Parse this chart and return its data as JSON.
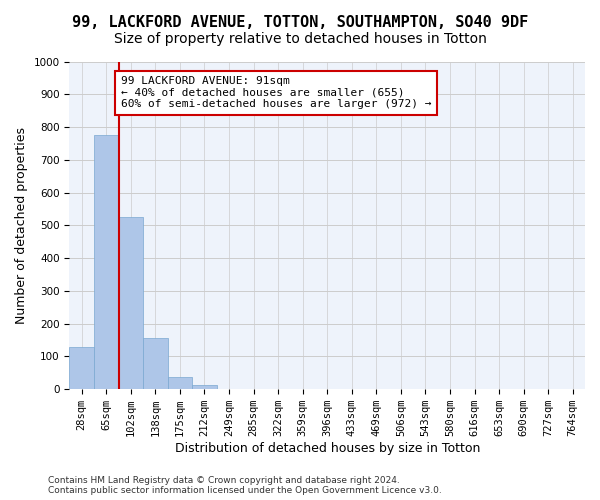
{
  "title": "99, LACKFORD AVENUE, TOTTON, SOUTHAMPTON, SO40 9DF",
  "subtitle": "Size of property relative to detached houses in Totton",
  "xlabel": "Distribution of detached houses by size in Totton",
  "ylabel": "Number of detached properties",
  "bar_values": [
    130,
    775,
    525,
    155,
    37,
    12,
    0,
    0,
    0,
    0,
    0,
    0,
    0,
    0,
    0,
    0,
    0,
    0,
    0,
    0,
    0
  ],
  "bar_labels": [
    "28sqm",
    "65sqm",
    "102sqm",
    "138sqm",
    "175sqm",
    "212sqm",
    "249sqm",
    "285sqm",
    "322sqm",
    "359sqm",
    "396sqm",
    "433sqm",
    "469sqm",
    "506sqm",
    "543sqm",
    "580sqm",
    "616sqm",
    "653sqm",
    "690sqm",
    "727sqm",
    "764sqm"
  ],
  "bar_color": "#aec6e8",
  "bar_edge_color": "#7aa8d0",
  "vline_color": "#cc0000",
  "annotation_text": "99 LACKFORD AVENUE: 91sqm\n← 40% of detached houses are smaller (655)\n60% of semi-detached houses are larger (972) →",
  "annotation_box_color": "#cc0000",
  "ylim": [
    0,
    1000
  ],
  "yticks": [
    0,
    100,
    200,
    300,
    400,
    500,
    600,
    700,
    800,
    900,
    1000
  ],
  "grid_color": "#cccccc",
  "bg_color": "#eef3fb",
  "footer": "Contains HM Land Registry data © Crown copyright and database right 2024.\nContains public sector information licensed under the Open Government Licence v3.0.",
  "title_fontsize": 11,
  "subtitle_fontsize": 10,
  "xlabel_fontsize": 9,
  "ylabel_fontsize": 9,
  "tick_fontsize": 7.5,
  "annotation_fontsize": 8,
  "footer_fontsize": 6.5
}
